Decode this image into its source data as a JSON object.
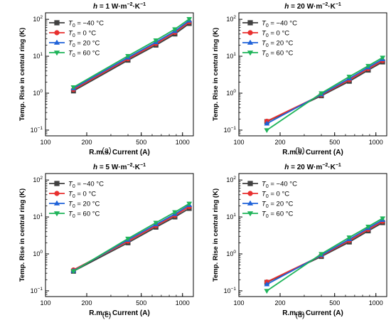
{
  "figure": {
    "panel_labels": [
      "(a)",
      "(b)",
      "(c)",
      "(d)"
    ]
  },
  "legend_entries": [
    {
      "sym": "T",
      "sub": "0",
      "rest": " = −40 °C"
    },
    {
      "sym": "T",
      "sub": "0",
      "rest": " = 0 °C"
    },
    {
      "sym": "T",
      "sub": "0",
      "rest": " = 20 °C"
    },
    {
      "sym": "T",
      "sub": "0",
      "rest": " = 60 °C"
    }
  ],
  "colors": {
    "series": [
      "#404040",
      "#e8302f",
      "#1f62d9",
      "#1fb45a"
    ]
  },
  "chart_data": [
    {
      "type": "line",
      "title_parts": {
        "h": "h",
        "mid": " = 1 W·m",
        "sup1": "−2",
        "dot": "·K",
        "sup2": "−1"
      },
      "xlabel": "R.m.s. Current (A)",
      "ylabel": "Temp. Rise in central ring (K)",
      "x_scale": "log",
      "y_scale": "log",
      "xlim": [
        100,
        1200
      ],
      "ylim": [
        0.07,
        150
      ],
      "x_ticks": [
        100,
        200,
        500,
        1000
      ],
      "x_tick_labels": [
        "100",
        "200",
        "500",
        "1000"
      ],
      "y_ticks": [
        0.1,
        1,
        10,
        100
      ],
      "y_tick_labels": [
        [
          "10",
          "−1"
        ],
        [
          "10",
          "0"
        ],
        [
          "10",
          "1"
        ],
        [
          "10",
          "2"
        ]
      ],
      "x": [
        160,
        400,
        640,
        880,
        1120
      ],
      "series": [
        {
          "name": "T0 = -40 °C",
          "marker": "square",
          "values": [
            1.15,
            7.8,
            20,
            40,
            77
          ]
        },
        {
          "name": "T0 = 0 °C",
          "marker": "circle",
          "values": [
            1.25,
            8.5,
            22,
            44,
            85
          ]
        },
        {
          "name": "T0 = 20 °C",
          "marker": "triangle-up",
          "values": [
            1.35,
            9.2,
            24,
            48,
            92
          ]
        },
        {
          "name": "T0 = 60 °C",
          "marker": "triangle-down",
          "values": [
            1.45,
            10.2,
            27,
            54,
            102
          ]
        }
      ],
      "legend": "top-left"
    },
    {
      "type": "line",
      "title_parts": {
        "h": "h",
        "mid": " = 20 W·m",
        "sup1": "−2",
        "dot": "·K",
        "sup2": "−1"
      },
      "xlabel": "R.m.s. Current (A)",
      "ylabel": "Temp. Rise in central ring (K)",
      "x_scale": "log",
      "y_scale": "log",
      "xlim": [
        100,
        1200
      ],
      "ylim": [
        0.07,
        150
      ],
      "x_ticks": [
        100,
        200,
        500,
        1000
      ],
      "x_tick_labels": [
        "100",
        "200",
        "500",
        "1000"
      ],
      "y_ticks": [
        0.1,
        1,
        10,
        100
      ],
      "y_tick_labels": [
        [
          "10",
          "−1"
        ],
        [
          "10",
          "0"
        ],
        [
          "10",
          "1"
        ],
        [
          "10",
          "2"
        ]
      ],
      "x": [
        160,
        400,
        640,
        880,
        1120
      ],
      "series": [
        {
          "name": "T0 = -40 °C",
          "marker": "square",
          "values": [
            0.17,
            0.85,
            2.1,
            4.2,
            7
          ]
        },
        {
          "name": "T0 = 0 °C",
          "marker": "circle",
          "values": [
            0.175,
            0.9,
            2.3,
            4.6,
            7.6
          ]
        },
        {
          "name": "T0 = 20 °C",
          "marker": "triangle-up",
          "values": [
            0.15,
            0.93,
            2.5,
            5,
            8.3
          ]
        },
        {
          "name": "T0 = 60 °C",
          "marker": "triangle-down",
          "values": [
            0.1,
            1.0,
            2.8,
            5.5,
            9.2
          ]
        }
      ],
      "legend": "top-left"
    },
    {
      "type": "line",
      "title_parts": {
        "h": "h",
        "mid": " = 5 W·m",
        "sup1": "−2",
        "dot": "·K",
        "sup2": "−1"
      },
      "xlabel": "R.m.s. Current (A)",
      "ylabel": "Temp. Rise in central ring (K)",
      "x_scale": "log",
      "y_scale": "log",
      "xlim": [
        100,
        1200
      ],
      "ylim": [
        0.07,
        150
      ],
      "x_ticks": [
        100,
        200,
        500,
        1000
      ],
      "x_tick_labels": [
        "100",
        "200",
        "500",
        "1000"
      ],
      "y_ticks": [
        0.1,
        1,
        10,
        100
      ],
      "y_tick_labels": [
        [
          "10",
          "−1"
        ],
        [
          "10",
          "0"
        ],
        [
          "10",
          "1"
        ],
        [
          "10",
          "2"
        ]
      ],
      "x": [
        160,
        400,
        640,
        880,
        1120
      ],
      "series": [
        {
          "name": "T0 = -40 °C",
          "marker": "square",
          "values": [
            0.34,
            2.0,
            5.3,
            10,
            17
          ]
        },
        {
          "name": "T0 = 0 °C",
          "marker": "circle",
          "values": [
            0.37,
            2.2,
            5.8,
            11,
            19
          ]
        },
        {
          "name": "T0 = 20 °C",
          "marker": "triangle-up",
          "values": [
            0.35,
            2.4,
            6.3,
            12,
            21
          ]
        },
        {
          "name": "T0 = 60 °C",
          "marker": "triangle-down",
          "values": [
            0.34,
            2.6,
            7,
            13.5,
            23
          ]
        }
      ],
      "legend": "top-left"
    },
    {
      "type": "line",
      "title_parts": {
        "h": "h",
        "mid": " = 20 W·m",
        "sup1": "−2",
        "dot": "·K",
        "sup2": "−1"
      },
      "xlabel": "R.m.s. Current (A)",
      "ylabel": "Temp. Rise in central ring (K)",
      "x_scale": "log",
      "y_scale": "log",
      "xlim": [
        100,
        1200
      ],
      "ylim": [
        0.07,
        150
      ],
      "x_ticks": [
        100,
        200,
        500,
        1000
      ],
      "x_tick_labels": [
        "100",
        "200",
        "500",
        "1000"
      ],
      "y_ticks": [
        0.1,
        1,
        10,
        100
      ],
      "y_tick_labels": [
        [
          "10",
          "−1"
        ],
        [
          "10",
          "0"
        ],
        [
          "10",
          "1"
        ],
        [
          "10",
          "2"
        ]
      ],
      "x": [
        160,
        400,
        640,
        880,
        1120
      ],
      "series": [
        {
          "name": "T0 = -40 °C",
          "marker": "square",
          "values": [
            0.17,
            0.85,
            2.1,
            4.2,
            7
          ]
        },
        {
          "name": "T0 = 0 °C",
          "marker": "circle",
          "values": [
            0.175,
            0.9,
            2.3,
            4.6,
            7.6
          ]
        },
        {
          "name": "T0 = 20 °C",
          "marker": "triangle-up",
          "values": [
            0.15,
            0.93,
            2.5,
            5,
            8.3
          ]
        },
        {
          "name": "T0 = 60 °C",
          "marker": "triangle-down",
          "values": [
            0.1,
            1.0,
            2.8,
            5.5,
            9.2
          ]
        }
      ],
      "legend": "top-left"
    }
  ]
}
